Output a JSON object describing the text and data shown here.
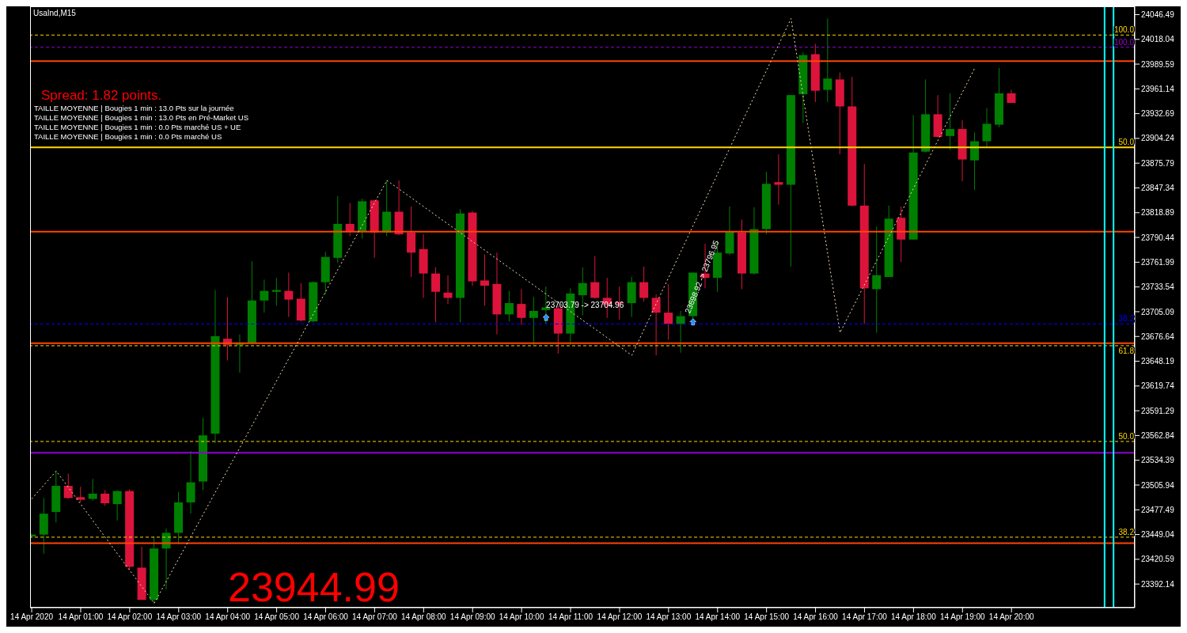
{
  "chart_data": {
    "type": "candlestick",
    "title": "UsaInd,M15",
    "x": [
      "2020-04-14T00:00",
      "2020-04-14T00:15",
      "2020-04-14T00:30",
      "2020-04-14T00:45",
      "2020-04-14T01:00",
      "2020-04-14T01:15",
      "2020-04-14T01:30",
      "2020-04-14T01:45",
      "2020-04-14T02:00",
      "2020-04-14T02:15",
      "2020-04-14T02:30",
      "2020-04-14T02:45",
      "2020-04-14T03:00",
      "2020-04-14T03:15",
      "2020-04-14T03:30",
      "2020-04-14T03:45",
      "2020-04-14T04:00",
      "2020-04-14T04:15",
      "2020-04-14T04:30",
      "2020-04-14T04:45",
      "2020-04-14T05:00",
      "2020-04-14T05:15",
      "2020-04-14T05:30",
      "2020-04-14T05:45",
      "2020-04-14T06:00",
      "2020-04-14T06:15",
      "2020-04-14T06:30",
      "2020-04-14T06:45",
      "2020-04-14T07:00",
      "2020-04-14T07:15",
      "2020-04-14T07:30",
      "2020-04-14T07:45",
      "2020-04-14T08:00",
      "2020-04-14T08:15",
      "2020-04-14T08:30",
      "2020-04-14T08:45",
      "2020-04-14T09:00",
      "2020-04-14T09:15",
      "2020-04-14T09:30",
      "2020-04-14T09:45",
      "2020-04-14T10:00",
      "2020-04-14T10:15",
      "2020-04-14T10:30",
      "2020-04-14T10:45",
      "2020-04-14T11:00",
      "2020-04-14T11:15",
      "2020-04-14T11:30",
      "2020-04-14T11:45",
      "2020-04-14T12:00",
      "2020-04-14T12:15",
      "2020-04-14T12:30",
      "2020-04-14T12:45",
      "2020-04-14T13:00",
      "2020-04-14T13:15",
      "2020-04-14T13:30",
      "2020-04-14T13:45",
      "2020-04-14T14:00",
      "2020-04-14T14:15",
      "2020-04-14T14:30",
      "2020-04-14T14:45",
      "2020-04-14T15:00",
      "2020-04-14T15:15",
      "2020-04-14T15:30",
      "2020-04-14T15:45",
      "2020-04-14T16:00",
      "2020-04-14T16:15",
      "2020-04-14T16:30",
      "2020-04-14T16:45",
      "2020-04-14T17:00",
      "2020-04-14T17:15",
      "2020-04-14T17:30",
      "2020-04-14T17:45",
      "2020-04-14T18:00",
      "2020-04-14T18:15",
      "2020-04-14T18:30",
      "2020-04-14T18:45",
      "2020-04-14T19:00",
      "2020-04-14T19:15",
      "2020-04-14T19:30",
      "2020-04-14T19:45",
      "2020-04-14T20:00"
    ],
    "ohlc": [
      [
        23447,
        23450,
        23446,
        23449
      ],
      [
        23449,
        23491,
        23427,
        23473
      ],
      [
        23475,
        23522,
        23463,
        23505
      ],
      [
        23505,
        23519,
        23490,
        23491
      ],
      [
        23492,
        23504,
        23486,
        23489
      ],
      [
        23490,
        23513,
        23488,
        23496
      ],
      [
        23496,
        23500,
        23482,
        23485
      ],
      [
        23484,
        23500,
        23465,
        23499
      ],
      [
        23499,
        23501,
        23408,
        23412
      ],
      [
        23411,
        23435,
        23374,
        23374
      ],
      [
        23374,
        23447,
        23370,
        23433
      ],
      [
        23433,
        23456,
        23386,
        23451
      ],
      [
        23451,
        23498,
        23438,
        23486
      ],
      [
        23486,
        23545,
        23473,
        23509
      ],
      [
        23510,
        23583,
        23500,
        23563
      ],
      [
        23565,
        23730,
        23554,
        23677
      ],
      [
        23674,
        23722,
        23649,
        23667
      ],
      [
        23667,
        23679,
        23635,
        23669
      ],
      [
        23669,
        23763,
        23668,
        23718
      ],
      [
        23718,
        23742,
        23704,
        23729
      ],
      [
        23728,
        23744,
        23712,
        23730
      ],
      [
        23729,
        23750,
        23699,
        23719
      ],
      [
        23720,
        23738,
        23694,
        23695
      ],
      [
        23694,
        23740,
        23693,
        23739
      ],
      [
        23739,
        23774,
        23725,
        23768
      ],
      [
        23767,
        23838,
        23761,
        23806
      ],
      [
        23806,
        23830,
        23792,
        23797
      ],
      [
        23797,
        23835,
        23789,
        23832
      ],
      [
        23833,
        23834,
        23767,
        23796
      ],
      [
        23796,
        23856,
        23792,
        23820
      ],
      [
        23820,
        23856,
        23793,
        23794
      ],
      [
        23796,
        23826,
        23745,
        23773
      ],
      [
        23777,
        23794,
        23721,
        23749
      ],
      [
        23749,
        23756,
        23693,
        23728
      ],
      [
        23727,
        23747,
        23714,
        23721
      ],
      [
        23721,
        23823,
        23693,
        23818
      ],
      [
        23819,
        23821,
        23735,
        23740
      ],
      [
        23741,
        23771,
        23712,
        23735
      ],
      [
        23737,
        23773,
        23679,
        23702
      ],
      [
        23702,
        23729,
        23694,
        23715
      ],
      [
        23714,
        23731,
        23690,
        23698
      ],
      [
        23698,
        23722,
        23667,
        23706
      ],
      [
        23707,
        23734,
        23691,
        23710
      ],
      [
        23709,
        23712,
        23657,
        23680
      ],
      [
        23680,
        23732,
        23667,
        23726
      ],
      [
        23724,
        23756,
        23701,
        23738
      ],
      [
        23739,
        23769,
        23720,
        23721
      ],
      [
        23721,
        23744,
        23698,
        23713
      ],
      [
        23716,
        23734,
        23696,
        23715
      ],
      [
        23715,
        23745,
        23699,
        23739
      ],
      [
        23739,
        23757,
        23717,
        23721
      ],
      [
        23721,
        23725,
        23655,
        23704
      ],
      [
        23704,
        23737,
        23673,
        23691
      ],
      [
        23691,
        23706,
        23658,
        23700
      ],
      [
        23700,
        23750,
        23689,
        23750
      ],
      [
        23749,
        23783,
        23732,
        23744
      ],
      [
        23744,
        23787,
        23728,
        23773
      ],
      [
        23772,
        23826,
        23770,
        23797
      ],
      [
        23796,
        23811,
        23731,
        23749
      ],
      [
        23749,
        23825,
        23748,
        23800
      ],
      [
        23800,
        23866,
        23794,
        23852
      ],
      [
        23854,
        23886,
        23828,
        23851
      ],
      [
        23851,
        23954,
        23757,
        23954
      ],
      [
        23955,
        24003,
        23922,
        24000
      ],
      [
        24001,
        24013,
        23946,
        23959
      ],
      [
        23960,
        24042,
        23946,
        23973
      ],
      [
        23972,
        23980,
        23886,
        23941
      ],
      [
        23941,
        23975,
        23826,
        23827
      ],
      [
        23827,
        23875,
        23691,
        23732
      ],
      [
        23731,
        23803,
        23681,
        23747
      ],
      [
        23745,
        23827,
        23745,
        23812
      ],
      [
        23813,
        23826,
        23762,
        23788
      ],
      [
        23788,
        23931,
        23788,
        23888
      ],
      [
        23889,
        23972,
        23888,
        23932
      ],
      [
        23932,
        23954,
        23905,
        23906
      ],
      [
        23907,
        23956,
        23891,
        23915
      ],
      [
        23915,
        23925,
        23855,
        23880
      ],
      [
        23879,
        23911,
        23845,
        23901
      ],
      [
        23901,
        23939,
        23895,
        23921
      ],
      [
        23920,
        23985,
        23917,
        23956
      ],
      [
        23956,
        23960,
        23945,
        23945
      ]
    ],
    "colors": [
      "#008000",
      "#008000",
      "#008000",
      "#dc143c",
      "#dc143c",
      "#008000",
      "#dc143c",
      "#008000",
      "#dc143c",
      "#dc143c",
      "#008000",
      "#008000",
      "#008000",
      "#008000",
      "#008000",
      "#008000",
      "#dc143c",
      "#008000",
      "#008000",
      "#008000",
      "#008000",
      "#dc143c",
      "#dc143c",
      "#008000",
      "#008000",
      "#008000",
      "#dc143c",
      "#008000",
      "#dc143c",
      "#008000",
      "#dc143c",
      "#dc143c",
      "#dc143c",
      "#dc143c",
      "#dc143c",
      "#008000",
      "#dc143c",
      "#dc143c",
      "#dc143c",
      "#008000",
      "#dc143c",
      "#008000",
      "#008000",
      "#dc143c",
      "#008000",
      "#008000",
      "#dc143c",
      "#dc143c",
      "#dc143c",
      "#008000",
      "#dc143c",
      "#dc143c",
      "#dc143c",
      "#008000",
      "#008000",
      "#dc143c",
      "#008000",
      "#008000",
      "#dc143c",
      "#008000",
      "#008000",
      "#dc143c",
      "#008000",
      "#008000",
      "#dc143c",
      "#008000",
      "#dc143c",
      "#dc143c",
      "#dc143c",
      "#008000",
      "#008000",
      "#dc143c",
      "#008000",
      "#008000",
      "#dc143c",
      "#008000",
      "#dc143c",
      "#008000",
      "#008000",
      "#008000",
      "#dc143c"
    ],
    "series": [
      {
        "type": "line",
        "x": [
          "2020-04-14T00:00",
          "2020-04-14T00:30",
          "2020-04-14T02:30",
          "2020-04-14T07:15",
          "2020-04-14T12:15",
          "2020-04-14T15:30",
          "2020-04-14T16:30",
          "2020-04-14T19:15"
        ],
        "values": [
          23490,
          23522,
          23370,
          23856,
          23655,
          24042,
          23681,
          23985
        ],
        "color": "#f5deb3",
        "line_style": "dotted"
      }
    ],
    "xlim": [
      "2020-04-13T23:58",
      "2020-04-14T22:31"
    ],
    "xticks": [
      {
        "value": "2020-04-14T00:00",
        "label": "14 Apr 2020"
      },
      {
        "value": "2020-04-14T01:00",
        "label": "14 Apr 01:00"
      },
      {
        "value": "2020-04-14T02:00",
        "label": "14 Apr 02:00"
      },
      {
        "value": "2020-04-14T03:00",
        "label": "14 Apr 03:00"
      },
      {
        "value": "2020-04-14T04:00",
        "label": "14 Apr 04:00"
      },
      {
        "value": "2020-04-14T05:00",
        "label": "14 Apr 05:00"
      },
      {
        "value": "2020-04-14T06:00",
        "label": "14 Apr 06:00"
      },
      {
        "value": "2020-04-14T07:00",
        "label": "14 Apr 07:00"
      },
      {
        "value": "2020-04-14T08:00",
        "label": "14 Apr 08:00"
      },
      {
        "value": "2020-04-14T09:00",
        "label": "14 Apr 09:00"
      },
      {
        "value": "2020-04-14T10:00",
        "label": "14 Apr 10:00"
      },
      {
        "value": "2020-04-14T11:00",
        "label": "14 Apr 11:00"
      },
      {
        "value": "2020-04-14T12:00",
        "label": "14 Apr 12:00"
      },
      {
        "value": "2020-04-14T13:00",
        "label": "14 Apr 13:00"
      },
      {
        "value": "2020-04-14T14:00",
        "label": "14 Apr 14:00"
      },
      {
        "value": "2020-04-14T15:00",
        "label": "14 Apr 15:00"
      },
      {
        "value": "2020-04-14T16:00",
        "label": "14 Apr 16:00"
      },
      {
        "value": "2020-04-14T17:00",
        "label": "14 Apr 17:00"
      },
      {
        "value": "2020-04-14T18:00",
        "label": "14 Apr 18:00"
      },
      {
        "value": "2020-04-14T19:00",
        "label": "14 Apr 19:00"
      },
      {
        "value": "2020-04-14T20:00",
        "label": "14 Apr 20:00"
      }
    ],
    "ylim": [
      23365,
      24056
    ],
    "yticks": [
      23392.14,
      23420.59,
      23449.04,
      23477.49,
      23505.94,
      23534.39,
      23562.84,
      23591.29,
      23619.74,
      23648.19,
      23676.64,
      23705.09,
      23733.54,
      23761.99,
      23790.44,
      23818.89,
      23847.34,
      23875.79,
      23904.24,
      23932.69,
      23961.14,
      23989.59,
      24018.04,
      24046.49
    ],
    "ref_lines": [
      {
        "axis": "y",
        "value": 23993,
        "color": "#ff4500",
        "line_style": "solid"
      },
      {
        "axis": "y",
        "value": 23797,
        "color": "#ff4500",
        "line_style": "solid"
      },
      {
        "axis": "y",
        "value": 23669,
        "color": "#ff4500",
        "line_style": "solid"
      },
      {
        "axis": "y",
        "value": 23439,
        "color": "#ff4500",
        "line_style": "solid"
      },
      {
        "axis": "y",
        "value": 23543,
        "color": "#9400d3",
        "line_style": "solid"
      },
      {
        "axis": "y",
        "value": 24023,
        "color": "#ffd700",
        "line_style": "dashed"
      },
      {
        "axis": "y",
        "value": 24009,
        "color": "#9400d3",
        "line_style": "dashed"
      },
      {
        "axis": "y",
        "value": 23894,
        "color": "#ffd700",
        "line_style": "solid"
      },
      {
        "axis": "y",
        "value": 23691,
        "color": "#0000ff",
        "line_style": "dashed"
      },
      {
        "axis": "y",
        "value": 23666,
        "color": "#ffd700",
        "line_style": "dashed"
      },
      {
        "axis": "y",
        "value": 23556,
        "color": "#ffd700",
        "line_style": "dashed"
      },
      {
        "axis": "y",
        "value": 23446,
        "color": "#ffd700",
        "line_style": "dashed"
      },
      {
        "axis": "x",
        "value": "2020-04-14T21:54",
        "color": "#00ffff",
        "line_style": "solid"
      },
      {
        "axis": "x",
        "value": "2020-04-14T22:05",
        "color": "#00ffff",
        "line_style": "solid"
      }
    ],
    "annotations": [
      "Spread: 1.82 points.",
      "TAILLE MOYENNE | Bougies 1 min : 13.0 Pts sur la journée",
      "TAILLE MOYENNE | Bougies 1 min : 13.0 Pts en Pré-Market US",
      "TAILLE MOYENNE | Bougies 1 min : 0.0 Pts marché US + UE",
      "TAILLE MOYENNE | Bougies 1 min : 0.0 Pts marché US",
      "23944.99",
      {
        "text": "23703.79 -> 23704.96",
        "x": "2020-04-14T10:30",
        "y": 23704
      },
      {
        "text": "23698.92 -> 23796.95",
        "x": "2020-04-14T13:30",
        "y": 23699
      },
      {
        "text": "100.0",
        "x": "2020-04-14T22:30",
        "y": 24023
      },
      {
        "text": "100.0",
        "x": "2020-04-14T22:30",
        "y": 24009
      },
      {
        "text": "50.0",
        "x": "2020-04-14T22:30",
        "y": 23894
      },
      {
        "text": "38.2",
        "x": "2020-04-14T22:30",
        "y": 23691
      },
      {
        "text": "61.8",
        "x": "2020-04-14T22:30",
        "y": 23666
      },
      {
        "text": "50.0",
        "x": "2020-04-14T22:30",
        "y": 23556
      },
      {
        "text": "38.2",
        "x": "2020-04-14T22:30",
        "y": 23446
      }
    ]
  }
}
